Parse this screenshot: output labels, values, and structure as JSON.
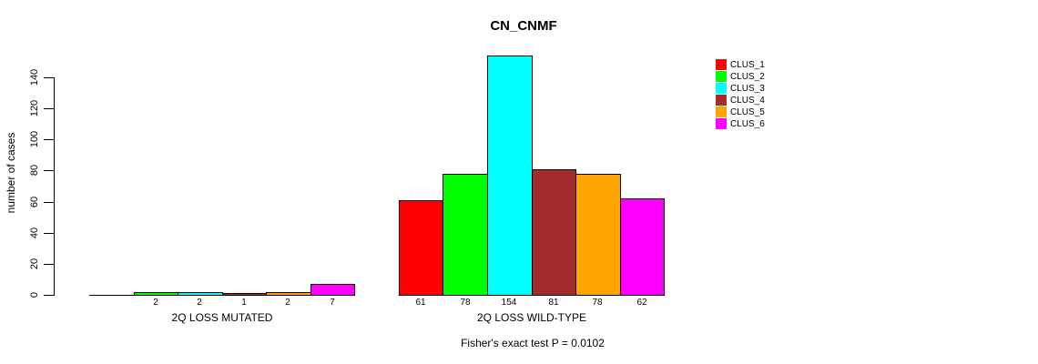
{
  "chart_data": {
    "type": "bar",
    "title": "CN_CNMF",
    "ylabel": "number of cases",
    "xlabel": "",
    "ylim": [
      0,
      140
    ],
    "yticks": [
      0,
      20,
      40,
      60,
      80,
      100,
      120,
      140
    ],
    "grid": false,
    "legend_position": "top-right",
    "series_colors": [
      "#FF0000",
      "#00FF00",
      "#00FFFF",
      "#A52A2A",
      "#FFA500",
      "#FF00FF"
    ],
    "legend": [
      {
        "label": "CLUS_1",
        "color": "#FF0000"
      },
      {
        "label": "CLUS_2",
        "color": "#00FF00"
      },
      {
        "label": "CLUS_3",
        "color": "#00FFFF"
      },
      {
        "label": "CLUS_4",
        "color": "#A52A2A"
      },
      {
        "label": "CLUS_5",
        "color": "#FFA500"
      },
      {
        "label": "CLUS_6",
        "color": "#FF00FF"
      }
    ],
    "groups": [
      {
        "label": "2Q LOSS MUTATED",
        "values": [
          0,
          2,
          2,
          1,
          2,
          7
        ],
        "bar_labels": [
          "",
          "2",
          "2",
          "1",
          "2",
          "7"
        ]
      },
      {
        "label": "2Q LOSS WILD-TYPE",
        "values": [
          61,
          78,
          154,
          81,
          78,
          62
        ],
        "bar_labels": [
          "61",
          "78",
          "154",
          "81",
          "78",
          "62"
        ]
      }
    ],
    "annotation": "Fisher's exact test P = 0.0102",
    "axis_color": "#000000",
    "background_color": "#FFFFFF"
  }
}
